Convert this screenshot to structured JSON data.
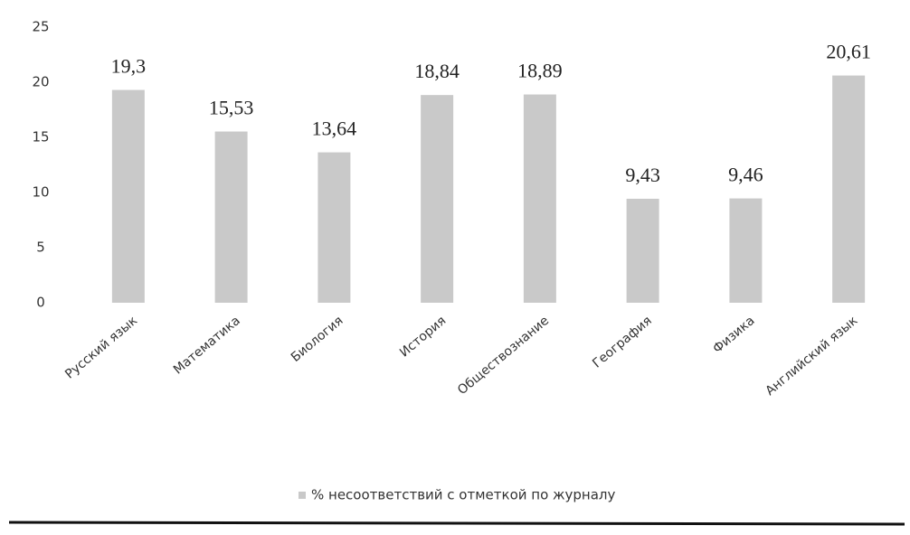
{
  "chart_data": {
    "type": "bar",
    "categories": [
      "Русский язык",
      "Математика",
      "Биология",
      "История",
      "Обществознание",
      "География",
      "Физика",
      "Английский язык"
    ],
    "series": [
      {
        "name": "% несоответствий с отметкой по журналу",
        "color": "#c9c9c9",
        "values": [
          19.3,
          15.53,
          13.64,
          18.84,
          18.89,
          9.43,
          9.46,
          20.61
        ],
        "value_labels": [
          "19,3",
          "15,53",
          "13,64",
          "18,84",
          "18,89",
          "9,43",
          "9,46",
          "20,61"
        ]
      }
    ],
    "ylim": [
      0,
      25
    ],
    "yticks": [
      0,
      5,
      10,
      15,
      20,
      25
    ],
    "grid": false,
    "legend": "bottom"
  }
}
